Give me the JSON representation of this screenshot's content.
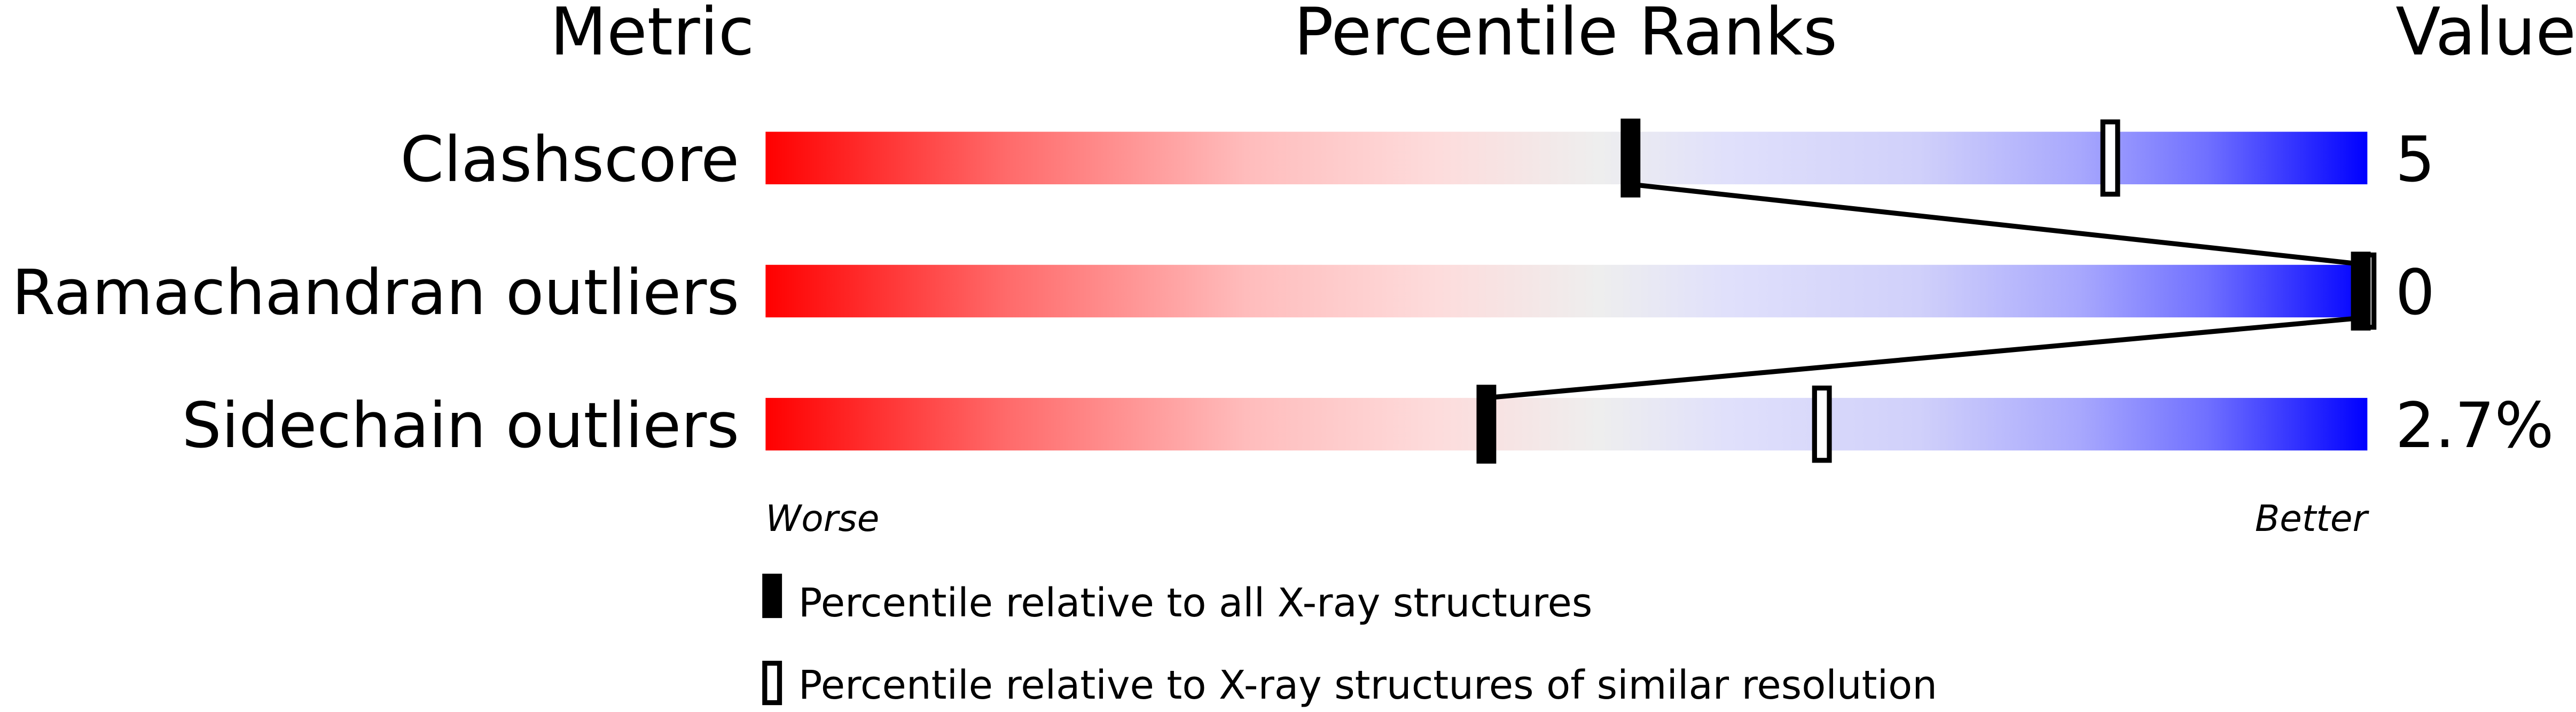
{
  "chart_data": {
    "type": "bar",
    "headers": {
      "metric": "Metric",
      "ranks": "Percentile Ranks",
      "value": "Value"
    },
    "xlim": [
      0,
      100
    ],
    "gradient_colors": {
      "worse": "#ff0000",
      "middle": "#eeeeee",
      "better": "#0000ff"
    },
    "rows": [
      {
        "metric": "Clashscore",
        "value": "5",
        "percentile_all": 54,
        "percentile_similar": 84
      },
      {
        "metric": "Ramachandran outliers",
        "value": "0",
        "percentile_all": 100,
        "percentile_similar": 100
      },
      {
        "metric": "Sidechain outliers",
        "value": "2.7%",
        "percentile_all": 45,
        "percentile_similar": 66
      }
    ],
    "axis_labels": {
      "left": "Worse",
      "right": "Better"
    },
    "legend": {
      "filled": "Percentile relative to all X-ray structures",
      "open": "Percentile relative to X-ray structures of similar resolution"
    }
  }
}
